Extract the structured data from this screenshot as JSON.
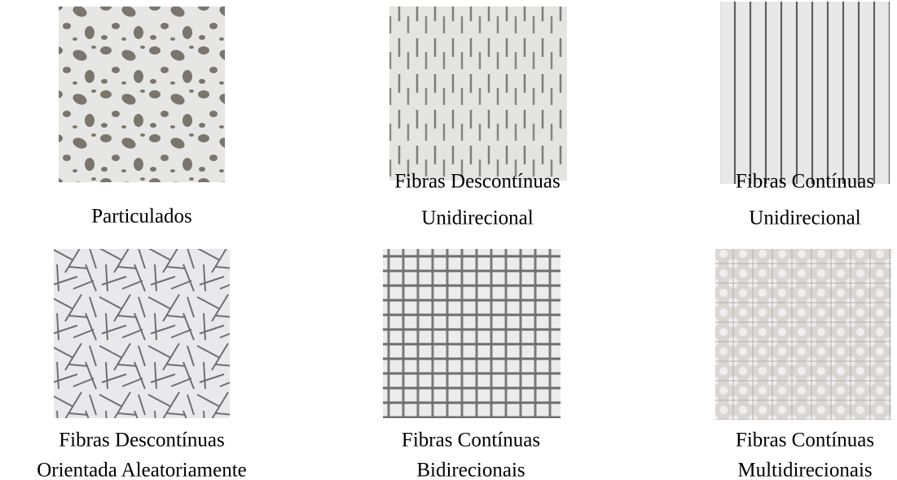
{
  "figures": [
    {
      "caption": [
        "Particulados"
      ]
    },
    {
      "caption": [
        "Fibras Descontínuas",
        "Unidirecional"
      ]
    },
    {
      "caption": [
        "Fibras Contínuas",
        "Unidirecional"
      ]
    },
    {
      "caption": [
        "Fibras Descontínuas",
        "Orientada Aleatoriamente"
      ]
    },
    {
      "caption": [
        "Fibras Contínuas",
        "Bidirecionais"
      ]
    },
    {
      "caption": [
        "Fibras Contínuas",
        "Multidirecionais"
      ]
    }
  ]
}
